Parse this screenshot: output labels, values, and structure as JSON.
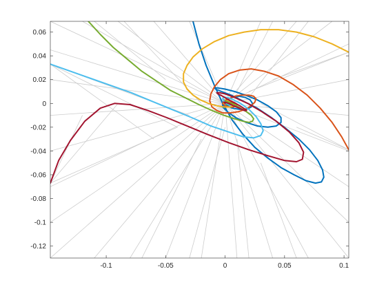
{
  "chart_data": {
    "type": "line",
    "title": "",
    "xlabel": "",
    "ylabel": "",
    "xlim": [
      -0.147,
      0.104
    ],
    "ylim": [
      -0.13,
      0.069
    ],
    "grid": false,
    "legend": "none",
    "x_ticks": [
      {
        "value": -0.1,
        "label": "-0.1"
      },
      {
        "value": -0.05,
        "label": "-0.05"
      },
      {
        "value": 0,
        "label": "0"
      },
      {
        "value": 0.05,
        "label": "0.05"
      },
      {
        "value": 0.1,
        "label": "0.1"
      }
    ],
    "y_ticks": [
      {
        "value": 0.06,
        "label": "0.06"
      },
      {
        "value": 0.04,
        "label": "0.04"
      },
      {
        "value": 0.02,
        "label": "0.02"
      },
      {
        "value": 0,
        "label": "0"
      },
      {
        "value": -0.02,
        "label": "-0.02"
      },
      {
        "value": -0.04,
        "label": "-0.04"
      },
      {
        "value": -0.06,
        "label": "-0.06"
      },
      {
        "value": -0.08,
        "label": "-0.08"
      },
      {
        "value": -0.1,
        "label": "-0.1"
      },
      {
        "value": -0.12,
        "label": "-0.12"
      }
    ],
    "background_field": {
      "color": "#cccccc",
      "description_free": true,
      "segments": [
        [
          [
            -0.147,
            0.069
          ],
          [
            0.0,
            0.0
          ]
        ],
        [
          [
            -0.12,
            0.069
          ],
          [
            0.0,
            0.0
          ]
        ],
        [
          [
            -0.09,
            0.069
          ],
          [
            0.0,
            0.0
          ]
        ],
        [
          [
            -0.06,
            0.069
          ],
          [
            0.0,
            0.0
          ]
        ],
        [
          [
            -0.03,
            0.069
          ],
          [
            0.0,
            0.0
          ]
        ],
        [
          [
            0.0,
            0.069
          ],
          [
            0.0,
            0.0
          ]
        ],
        [
          [
            0.03,
            0.069
          ],
          [
            0.0,
            0.0
          ]
        ],
        [
          [
            0.06,
            0.069
          ],
          [
            0.0,
            0.0
          ]
        ],
        [
          [
            0.09,
            0.069
          ],
          [
            0.0,
            0.0
          ]
        ],
        [
          [
            0.104,
            0.05
          ],
          [
            0.0,
            0.0
          ]
        ],
        [
          [
            0.104,
            0.02
          ],
          [
            0.0,
            0.0
          ]
        ],
        [
          [
            0.104,
            -0.01
          ],
          [
            0.0,
            0.0
          ]
        ],
        [
          [
            0.104,
            -0.04
          ],
          [
            0.0,
            0.0
          ]
        ],
        [
          [
            0.104,
            -0.07
          ],
          [
            0.0,
            0.0
          ]
        ],
        [
          [
            0.104,
            -0.1
          ],
          [
            0.0,
            0.0
          ]
        ],
        [
          [
            0.104,
            -0.13
          ],
          [
            0.0,
            0.0
          ]
        ],
        [
          [
            0.07,
            -0.13
          ],
          [
            0.0,
            0.0
          ]
        ],
        [
          [
            0.04,
            -0.13
          ],
          [
            0.0,
            0.0
          ]
        ],
        [
          [
            0.01,
            -0.13
          ],
          [
            0.0,
            0.0
          ]
        ],
        [
          [
            -0.02,
            -0.13
          ],
          [
            0.0,
            0.0
          ]
        ],
        [
          [
            -0.05,
            -0.13
          ],
          [
            0.0,
            0.0
          ]
        ],
        [
          [
            -0.08,
            -0.13
          ],
          [
            0.0,
            0.0
          ]
        ],
        [
          [
            -0.11,
            -0.13
          ],
          [
            0.0,
            0.0
          ]
        ],
        [
          [
            -0.147,
            -0.13
          ],
          [
            0.0,
            0.0
          ]
        ],
        [
          [
            -0.147,
            -0.1
          ],
          [
            0.0,
            0.0
          ]
        ],
        [
          [
            -0.147,
            -0.07
          ],
          [
            0.0,
            0.0
          ]
        ],
        [
          [
            -0.147,
            -0.04
          ],
          [
            0.0,
            0.0
          ]
        ],
        [
          [
            -0.147,
            -0.01
          ],
          [
            0.0,
            0.0
          ]
        ],
        [
          [
            -0.147,
            0.02
          ],
          [
            0.0,
            0.0
          ]
        ],
        [
          [
            -0.147,
            0.045
          ],
          [
            0.0,
            0.0
          ]
        ],
        [
          [
            -0.147,
            0.033
          ],
          [
            -0.04,
            -0.02
          ]
        ],
        [
          [
            -0.147,
            0.033
          ],
          [
            -0.06,
            -0.03
          ]
        ],
        [
          [
            -0.147,
            0.033
          ],
          [
            -0.03,
            -0.01
          ]
        ],
        [
          [
            -0.147,
            -0.067
          ],
          [
            -0.09,
            0.0
          ]
        ],
        [
          [
            -0.147,
            -0.067
          ],
          [
            -0.04,
            -0.02
          ]
        ],
        [
          [
            -0.147,
            -0.067
          ],
          [
            -0.12,
            -0.01
          ]
        ],
        [
          [
            0.104,
            0.043
          ],
          [
            0.02,
            0.01
          ]
        ],
        [
          [
            0.104,
            0.043
          ],
          [
            0.04,
            0.02
          ]
        ],
        [
          [
            0.104,
            -0.039
          ],
          [
            0.06,
            -0.02
          ]
        ],
        [
          [
            0.104,
            -0.039
          ],
          [
            0.03,
            0.0
          ]
        ],
        [
          [
            -0.085,
            0.069
          ],
          [
            -0.02,
            0.0
          ]
        ],
        [
          [
            -0.11,
            0.069
          ],
          [
            -0.05,
            0.02
          ]
        ],
        [
          [
            0.04,
            0.069
          ],
          [
            0.01,
            0.01
          ]
        ],
        [
          [
            0.07,
            0.069
          ],
          [
            0.02,
            0.005
          ]
        ],
        [
          [
            -0.03,
            -0.13
          ],
          [
            0.0,
            -0.02
          ]
        ],
        [
          [
            0.02,
            -0.13
          ],
          [
            0.01,
            -0.03
          ]
        ],
        [
          [
            0.06,
            -0.13
          ],
          [
            0.03,
            -0.05
          ]
        ],
        [
          [
            -0.07,
            -0.13
          ],
          [
            -0.02,
            -0.03
          ]
        ]
      ]
    },
    "series": [
      {
        "color": "#0072bd",
        "x": [
          -0.027,
          -0.022,
          -0.016,
          -0.009,
          -0.002,
          0.006,
          0.015,
          0.025,
          0.036,
          0.047,
          0.058,
          0.068,
          0.076,
          0.081,
          0.083,
          0.082,
          0.078,
          0.071,
          0.062,
          0.051,
          0.039,
          0.027,
          0.015,
          0.005,
          -0.003,
          -0.008,
          -0.009,
          -0.006,
          0.0,
          0.008,
          0.017,
          0.027,
          0.036,
          0.043,
          0.047,
          0.047,
          0.043,
          0.036,
          0.027,
          0.018,
          0.009,
          0.002,
          -0.002,
          -0.002,
          0.001,
          0.006,
          0.012,
          0.017,
          0.021,
          0.023,
          0.022,
          0.018,
          0.012,
          0.006,
          0.002,
          0.0
        ],
        "y": [
          0.069,
          0.05,
          0.032,
          0.015,
          0.0,
          -0.014,
          -0.026,
          -0.037,
          -0.046,
          -0.054,
          -0.06,
          -0.065,
          -0.067,
          -0.066,
          -0.062,
          -0.056,
          -0.048,
          -0.039,
          -0.03,
          -0.021,
          -0.012,
          -0.004,
          0.002,
          0.007,
          0.01,
          0.012,
          0.013,
          0.013,
          0.012,
          0.01,
          0.007,
          0.003,
          -0.002,
          -0.007,
          -0.012,
          -0.016,
          -0.019,
          -0.02,
          -0.019,
          -0.016,
          -0.012,
          -0.007,
          -0.003,
          0.0,
          0.003,
          0.005,
          0.006,
          0.005,
          0.003,
          0.0,
          -0.003,
          -0.005,
          -0.005,
          -0.004,
          -0.002,
          0.0
        ]
      },
      {
        "color": "#d95319",
        "x": [
          0.104,
          0.098,
          0.09,
          0.08,
          0.069,
          0.057,
          0.045,
          0.033,
          0.022,
          0.012,
          0.003,
          -0.004,
          -0.009,
          -0.012,
          -0.013,
          -0.011,
          -0.007,
          -0.002,
          0.004,
          0.011,
          0.017,
          0.022,
          0.025,
          0.026,
          0.024,
          0.02,
          0.014,
          0.008,
          0.003,
          -0.001,
          -0.002,
          0.0,
          0.003,
          0.007,
          0.009,
          0.01,
          0.008,
          0.005,
          0.002,
          0.0
        ],
        "y": [
          -0.039,
          -0.028,
          -0.016,
          -0.004,
          0.007,
          0.016,
          0.023,
          0.027,
          0.029,
          0.028,
          0.025,
          0.02,
          0.014,
          0.008,
          0.002,
          -0.003,
          -0.006,
          -0.008,
          -0.008,
          -0.007,
          -0.005,
          -0.002,
          0.001,
          0.004,
          0.006,
          0.007,
          0.007,
          0.006,
          0.004,
          0.002,
          0.0,
          -0.002,
          -0.003,
          -0.003,
          -0.002,
          -0.001,
          0.0,
          0.001,
          0.001,
          0.0
        ]
      },
      {
        "color": "#edb120",
        "x": [
          0.104,
          0.09,
          0.075,
          0.06,
          0.045,
          0.03,
          0.016,
          0.003,
          -0.009,
          -0.019,
          -0.027,
          -0.032,
          -0.035,
          -0.035,
          -0.032,
          -0.027,
          -0.021,
          -0.014,
          -0.007,
          -0.001,
          0.004,
          0.007,
          0.009,
          0.009,
          0.007,
          0.005,
          0.002,
          0.0,
          -0.001,
          -0.001,
          0.0
        ],
        "y": [
          0.043,
          0.05,
          0.056,
          0.06,
          0.062,
          0.062,
          0.06,
          0.057,
          0.052,
          0.046,
          0.039,
          0.032,
          0.025,
          0.018,
          0.012,
          0.007,
          0.003,
          0.0,
          -0.002,
          -0.003,
          -0.003,
          -0.002,
          -0.001,
          0.0,
          0.001,
          0.002,
          0.002,
          0.002,
          0.001,
          0.0,
          0.0
        ]
      },
      {
        "color": "#77ac30",
        "x": [
          -0.115,
          -0.105,
          -0.094,
          -0.082,
          -0.07,
          -0.058,
          -0.046,
          -0.034,
          -0.022,
          -0.011,
          -0.001,
          0.008,
          0.015,
          0.02,
          0.023,
          0.024,
          0.022,
          0.018,
          0.013,
          0.008,
          0.003,
          0.0,
          -0.001,
          0.0,
          0.002,
          0.004,
          0.005,
          0.004,
          0.002,
          0.0
        ],
        "y": [
          0.069,
          0.058,
          0.047,
          0.037,
          0.027,
          0.019,
          0.011,
          0.005,
          -0.001,
          -0.006,
          -0.01,
          -0.013,
          -0.015,
          -0.016,
          -0.015,
          -0.013,
          -0.01,
          -0.007,
          -0.004,
          -0.001,
          0.001,
          0.002,
          0.003,
          0.002,
          0.001,
          0.0,
          -0.001,
          -0.001,
          -0.001,
          0.0
        ]
      },
      {
        "color": "#4dbeee",
        "x": [
          -0.147,
          -0.13,
          -0.113,
          -0.096,
          -0.079,
          -0.062,
          -0.045,
          -0.028,
          -0.012,
          0.003,
          0.015,
          0.024,
          0.03,
          0.032,
          0.03,
          0.026,
          0.02,
          0.013,
          0.007,
          0.002,
          -0.001,
          -0.002,
          -0.001,
          0.001,
          0.003,
          0.004,
          0.004,
          0.003,
          0.001,
          0.0
        ],
        "y": [
          0.033,
          0.027,
          0.021,
          0.015,
          0.009,
          0.002,
          -0.005,
          -0.012,
          -0.019,
          -0.024,
          -0.028,
          -0.029,
          -0.027,
          -0.023,
          -0.017,
          -0.011,
          -0.005,
          0.0,
          0.003,
          0.005,
          0.005,
          0.004,
          0.002,
          0.0,
          -0.001,
          -0.002,
          -0.002,
          -0.001,
          0.0,
          0.0
        ]
      },
      {
        "color": "#a2142f",
        "x": [
          -0.147,
          -0.14,
          -0.13,
          -0.118,
          -0.105,
          -0.093,
          -0.08,
          -0.065,
          -0.049,
          -0.032,
          -0.015,
          0.003,
          0.02,
          0.036,
          0.05,
          0.06,
          0.065,
          0.066,
          0.062,
          0.054,
          0.043,
          0.031,
          0.019,
          0.008,
          0.0,
          -0.005,
          -0.007,
          -0.006,
          -0.002,
          0.003,
          0.009,
          0.014,
          0.017,
          0.018,
          0.016,
          0.012,
          0.007,
          0.003,
          0.0,
          -0.001,
          0.0
        ],
        "y": [
          -0.067,
          -0.048,
          -0.031,
          -0.015,
          -0.004,
          0.0,
          -0.001,
          -0.006,
          -0.012,
          -0.019,
          -0.026,
          -0.033,
          -0.039,
          -0.044,
          -0.048,
          -0.049,
          -0.047,
          -0.041,
          -0.033,
          -0.024,
          -0.015,
          -0.007,
          0.0,
          0.005,
          0.008,
          0.009,
          0.009,
          0.008,
          0.006,
          0.003,
          0.0,
          -0.003,
          -0.005,
          -0.006,
          -0.006,
          -0.004,
          -0.002,
          0.0,
          0.001,
          0.001,
          0.0
        ]
      }
    ]
  }
}
